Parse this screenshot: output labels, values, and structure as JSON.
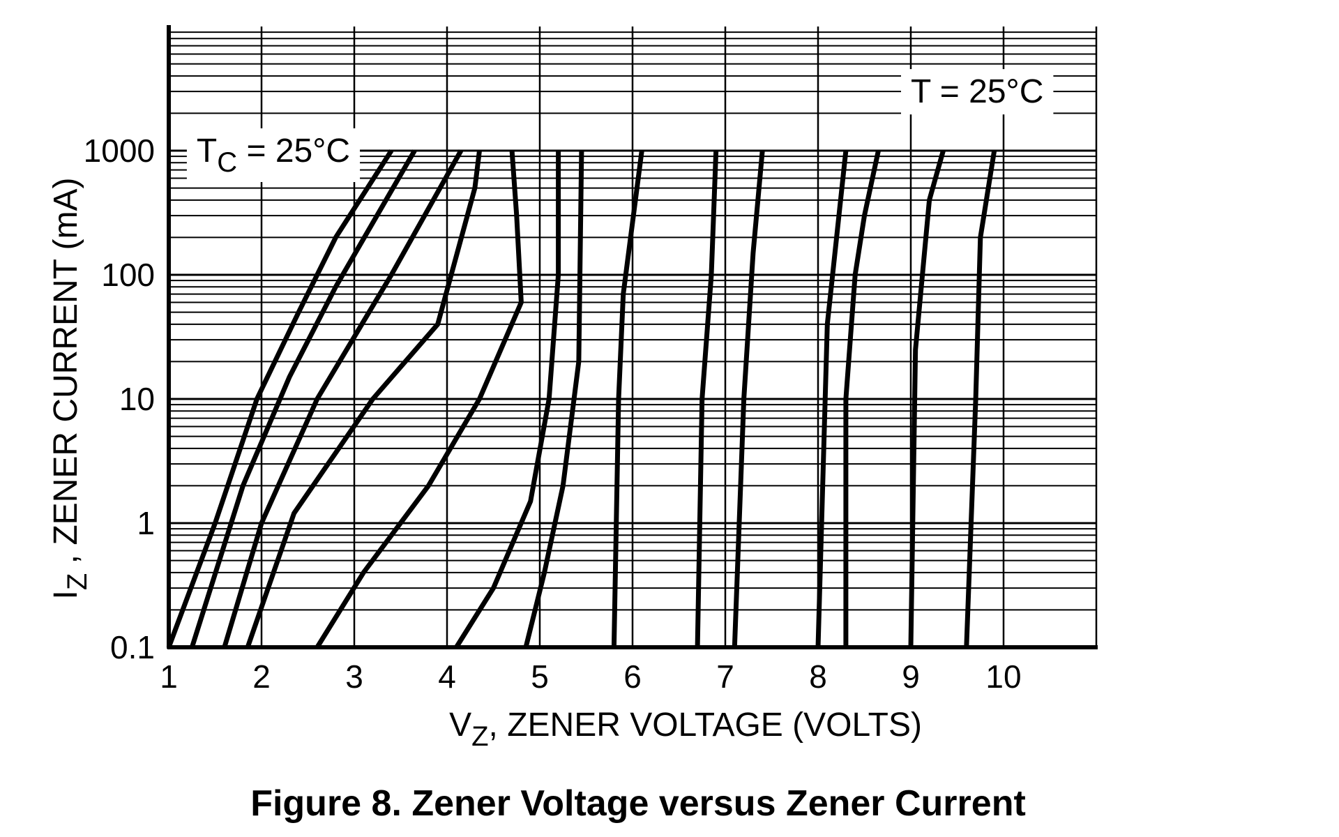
{
  "caption": "Figure 8. Zener Voltage versus Zener Current",
  "chart_data": {
    "type": "line",
    "title": "",
    "xlabel": {
      "base": "V",
      "sub": "Z",
      "rest": ", ZENER VOLTAGE (VOLTS)"
    },
    "ylabel": {
      "base": "I",
      "sub": "Z",
      "rest": " , ZENER CURRENT (mA)"
    },
    "xlim": [
      1,
      11
    ],
    "ylim": [
      0.1,
      10000
    ],
    "y_scale": "log",
    "grid": true,
    "x_ticks": [
      1,
      2,
      3,
      4,
      5,
      6,
      7,
      8,
      9,
      10
    ],
    "x_tick_labels": [
      "1",
      "2",
      "3",
      "4",
      "5",
      "6",
      "7",
      "8",
      "9",
      "10"
    ],
    "y_ticks": [
      0.1,
      1,
      10,
      100,
      1000
    ],
    "y_tick_labels": [
      "0.1",
      "1",
      "10",
      "100",
      "1000"
    ],
    "annotations": [
      {
        "base": "T",
        "sub": "C",
        "rest": " = 25°C",
        "x": 1.3,
        "y": 1000
      },
      {
        "base": "T",
        "sub": "",
        "rest": " = 25°C",
        "x": 9.0,
        "y": 3000
      }
    ],
    "series": [
      {
        "values": [
          [
            1.0,
            0.1
          ],
          [
            1.5,
            1
          ],
          [
            1.95,
            10
          ],
          [
            2.4,
            50
          ],
          [
            2.8,
            200
          ],
          [
            3.4,
            1000
          ]
        ]
      },
      {
        "values": [
          [
            1.25,
            0.1
          ],
          [
            1.8,
            2
          ],
          [
            2.3,
            15
          ],
          [
            2.8,
            80
          ],
          [
            3.65,
            1000
          ]
        ]
      },
      {
        "values": [
          [
            1.6,
            0.1
          ],
          [
            2.0,
            1
          ],
          [
            2.6,
            10
          ],
          [
            3.4,
            100
          ],
          [
            4.15,
            1000
          ]
        ]
      },
      {
        "values": [
          [
            1.85,
            0.1
          ],
          [
            2.35,
            1.2
          ],
          [
            3.2,
            10
          ],
          [
            3.9,
            40
          ],
          [
            4.3,
            500
          ],
          [
            4.35,
            1000
          ]
        ]
      },
      {
        "values": [
          [
            2.6,
            0.1
          ],
          [
            3.1,
            0.4
          ],
          [
            3.8,
            2
          ],
          [
            4.35,
            10
          ],
          [
            4.8,
            60
          ],
          [
            4.75,
            300
          ],
          [
            4.7,
            1000
          ]
        ]
      },
      {
        "values": [
          [
            4.1,
            0.1
          ],
          [
            4.5,
            0.3
          ],
          [
            4.9,
            1.5
          ],
          [
            5.1,
            10
          ],
          [
            5.2,
            100
          ],
          [
            5.2,
            1000
          ]
        ]
      },
      {
        "values": [
          [
            4.85,
            0.1
          ],
          [
            5.05,
            0.4
          ],
          [
            5.25,
            2
          ],
          [
            5.42,
            20
          ],
          [
            5.45,
            1000
          ]
        ]
      },
      {
        "values": [
          [
            5.8,
            0.1
          ],
          [
            5.85,
            10
          ],
          [
            5.9,
            70
          ],
          [
            6.1,
            1000
          ]
        ]
      },
      {
        "values": [
          [
            6.7,
            0.1
          ],
          [
            6.75,
            10
          ],
          [
            6.85,
            100
          ],
          [
            6.9,
            1000
          ]
        ]
      },
      {
        "values": [
          [
            7.1,
            0.1
          ],
          [
            7.2,
            10
          ],
          [
            7.3,
            150
          ],
          [
            7.4,
            1000
          ]
        ]
      },
      {
        "values": [
          [
            8.0,
            0.1
          ],
          [
            8.1,
            40
          ],
          [
            8.3,
            1000
          ]
        ]
      },
      {
        "values": [
          [
            8.3,
            0.1
          ],
          [
            8.3,
            10
          ],
          [
            8.4,
            100
          ],
          [
            8.5,
            300
          ],
          [
            8.65,
            1000
          ]
        ]
      },
      {
        "values": [
          [
            9.0,
            0.1
          ],
          [
            9.05,
            25
          ],
          [
            9.2,
            400
          ],
          [
            9.35,
            1000
          ]
        ]
      },
      {
        "values": [
          [
            9.6,
            0.1
          ],
          [
            9.7,
            10
          ],
          [
            9.75,
            200
          ],
          [
            9.9,
            1000
          ]
        ]
      }
    ]
  }
}
